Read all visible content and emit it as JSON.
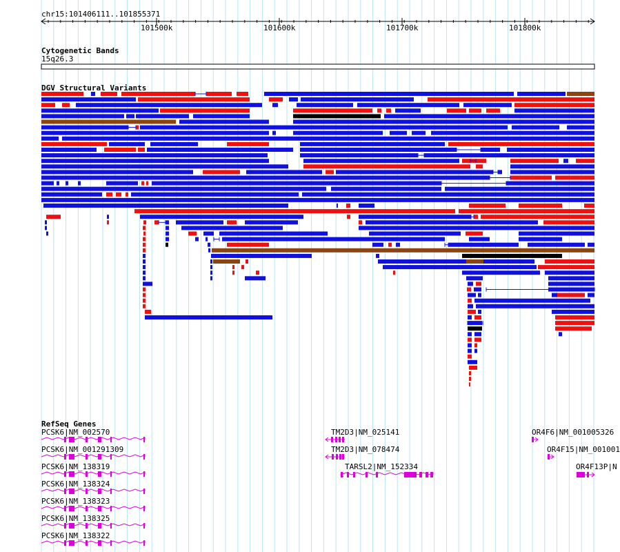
{
  "ruler": {
    "location": "chr15:101406111..101855371",
    "ticks": [
      "101500k",
      "101600k",
      "101700k",
      "101800k"
    ]
  },
  "cytogenetic_track": {
    "title": "Cytogenetic Bands",
    "band": "15q26.3"
  },
  "dgv_track": {
    "title": "DGV Structural Variants",
    "colors": {
      "loss": "#ee1111",
      "gain": "#1111dd",
      "both": "#8b4513",
      "other": "#000000"
    }
  },
  "refseq_track": {
    "title": "RefSeq Genes",
    "color": "#dd00dd",
    "genes": [
      "PCSK6|NM_002570",
      "PCSK6|NM_001291309",
      "PCSK6|NM_138319",
      "PCSK6|NM_138324",
      "PCSK6|NM_138323",
      "PCSK6|NM_138325",
      "PCSK6|NM_138322",
      "TM2D3|NM_025141",
      "TM2D3|NM_078474",
      "TARSL2|NM_152334",
      "OR4F6|NM_001005326",
      "OR4F15|NM_001001",
      "OR4F13P|N"
    ]
  }
}
